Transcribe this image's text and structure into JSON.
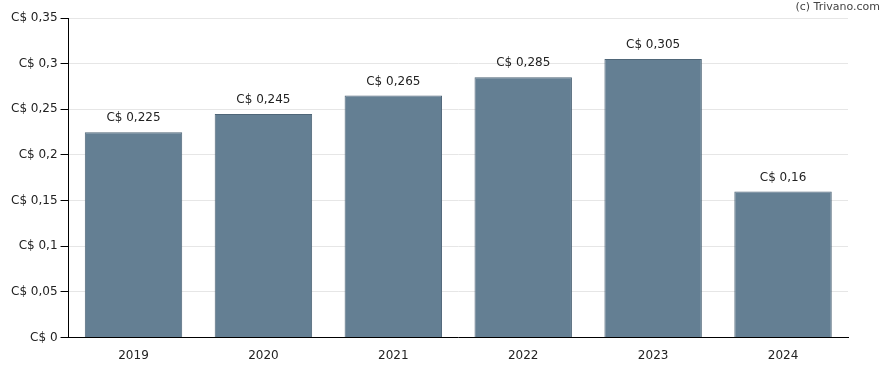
{
  "chart_data": {
    "type": "bar",
    "annotations": [
      "(c) Trivano.com"
    ],
    "categories": [
      "2019",
      "2020",
      "2021",
      "2022",
      "2023",
      "2024"
    ],
    "values": [
      0.225,
      0.245,
      0.265,
      0.285,
      0.305,
      0.16
    ],
    "value_labels": [
      "C$ 0,225",
      "C$ 0,245",
      "C$ 0,265",
      "C$ 0,285",
      "C$ 0,305",
      "C$ 0,16"
    ],
    "data_labels": true,
    "color": "#647f93",
    "ylim": [
      0,
      0.35
    ],
    "yticks": [
      {
        "value": 0,
        "label": "C$ 0"
      },
      {
        "value": 0.05,
        "label": "C$ 0,05"
      },
      {
        "value": 0.1,
        "label": "C$ 0,1"
      },
      {
        "value": 0.15,
        "label": "C$ 0,15"
      },
      {
        "value": 0.2,
        "label": "C$ 0,2"
      },
      {
        "value": 0.25,
        "label": "C$ 0,25"
      },
      {
        "value": 0.3,
        "label": "C$ 0,3"
      },
      {
        "value": 0.35,
        "label": "C$ 0,35"
      }
    ],
    "grid": true
  }
}
